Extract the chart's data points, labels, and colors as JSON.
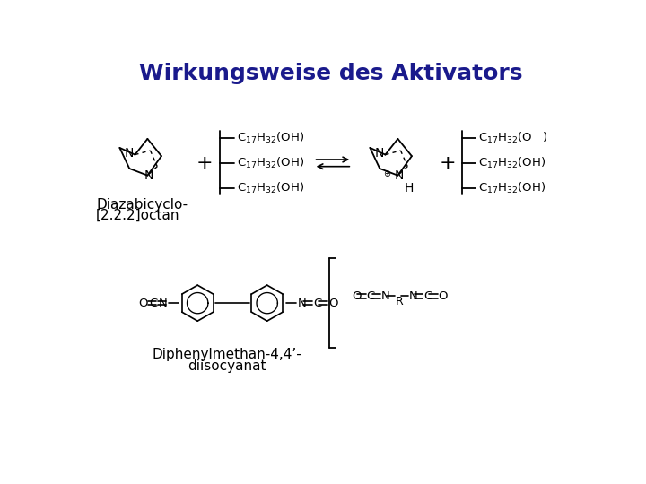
{
  "title": "Wirkungsweise des Aktivators",
  "title_color": "#1a1a8c",
  "title_fontsize": 18,
  "bg_color": "#ffffff",
  "line_color": "#000000",
  "label_diazabicyclo_line1": "Diazabicyclo-",
  "label_diazabicyclo_line2": "[2.2.2]octan",
  "label_mdi_line1": "Diphenylmethan-4,4’-",
  "label_mdi_line2": "diisocyanat"
}
